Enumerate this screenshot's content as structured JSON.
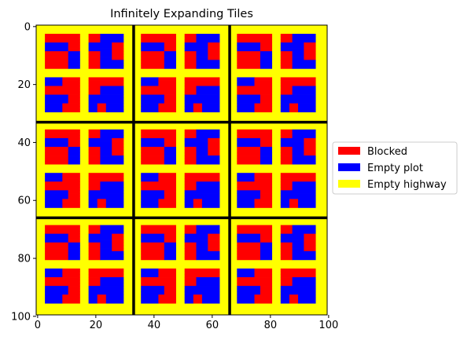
{
  "chart_data": {
    "type": "heatmap",
    "title": "Infinitely Expanding Tiles",
    "xlabel": "",
    "ylabel": "",
    "xlim": [
      0,
      100
    ],
    "ylim": [
      100,
      0
    ],
    "xticks": [
      0,
      20,
      40,
      60,
      80,
      100
    ],
    "yticks": [
      0,
      20,
      40,
      60,
      80,
      100
    ],
    "xtick_labels": [
      "0",
      "20",
      "40",
      "60",
      "80",
      "100"
    ],
    "ytick_labels": [
      "0",
      "20",
      "40",
      "60",
      "80",
      "100"
    ],
    "grid": false,
    "legend_position": "center-right (outside axes)",
    "categories": [
      {
        "key": "blocked",
        "label": "Blocked",
        "color": "#ff0000"
      },
      {
        "key": "empty_plot",
        "label": "Empty plot",
        "color": "#0000ff"
      },
      {
        "key": "empty_highway",
        "label": "Empty highway",
        "color": "#ffff00"
      }
    ],
    "tile_boundaries": [
      33.5,
      66.5
    ],
    "tile_boundary_color": "#000000",
    "tile_grid": {
      "rows": 3,
      "cols": 3,
      "tile_size": 33
    },
    "plot_blocks": {
      "start": 3,
      "size": 12,
      "offsets": [
        0,
        15
      ],
      "layout": [
        [
          "A",
          "B"
        ],
        [
          "C",
          "D"
        ]
      ]
    },
    "plot_patterns": {
      "A": [
        "RRRRRRRRRRRR",
        "RRRRRRRRRRRR",
        "RRRRRRRRRRRR",
        "BBBBBBBBRRRR",
        "BBBBBBBBRRRR",
        "BBBBBBBBRRRR",
        "RRRRRRRRBBBB",
        "RRRRRRRRBBBB",
        "RRRRRRRRBBBB",
        "RRRRRRRRBBBB",
        "RRRRRRRRBBBB",
        "RRRRRRRRBBBB"
      ],
      "B": [
        "RRRRBBBBBBBB",
        "RRRRBBBBBBBB",
        "RRRRBBBBBBBB",
        "BBBBBBBBRRRR",
        "BBBBBBBBRRRR",
        "BBBBBBBBRRRR",
        "RRRRBBBBRRRR",
        "RRRRBBBBRRRR",
        "RRRRBBBBRRRR",
        "RRRRBBBBBBBB",
        "RRRRBBBBBBBB",
        "RRRRBBBBBBBB"
      ],
      "C": [
        "BBBBBBRRRRRR",
        "BBBBBBRRRRRR",
        "BBBBBBRRRRRR",
        "RRRRRRRRRRRR",
        "RRRRRRRRRRRR",
        "RRRRRRRRRRRR",
        "BBBBBBBBRRRR",
        "BBBBBBBBRRRR",
        "BBBBBBBBRRRR",
        "BBBBBBRRRRRR",
        "BBBBBBRRRRRR",
        "BBBBBBRRRRRR"
      ],
      "D": [
        "RRRRRRRRRRRR",
        "RRRRRRRRRRRR",
        "RRRRRRRRRRRR",
        "RRRRBBBBBBBB",
        "RRRRBBBBBBBB",
        "RRRRBBBBBBBB",
        "BBBBBBBBBBBB",
        "BBBBBBBBBBBB",
        "BBBBBBBBBBBB",
        "BBBRRRBBBBBB",
        "BBBRRRBBBBBB",
        "BBBRRRBBBBBB"
      ]
    }
  }
}
